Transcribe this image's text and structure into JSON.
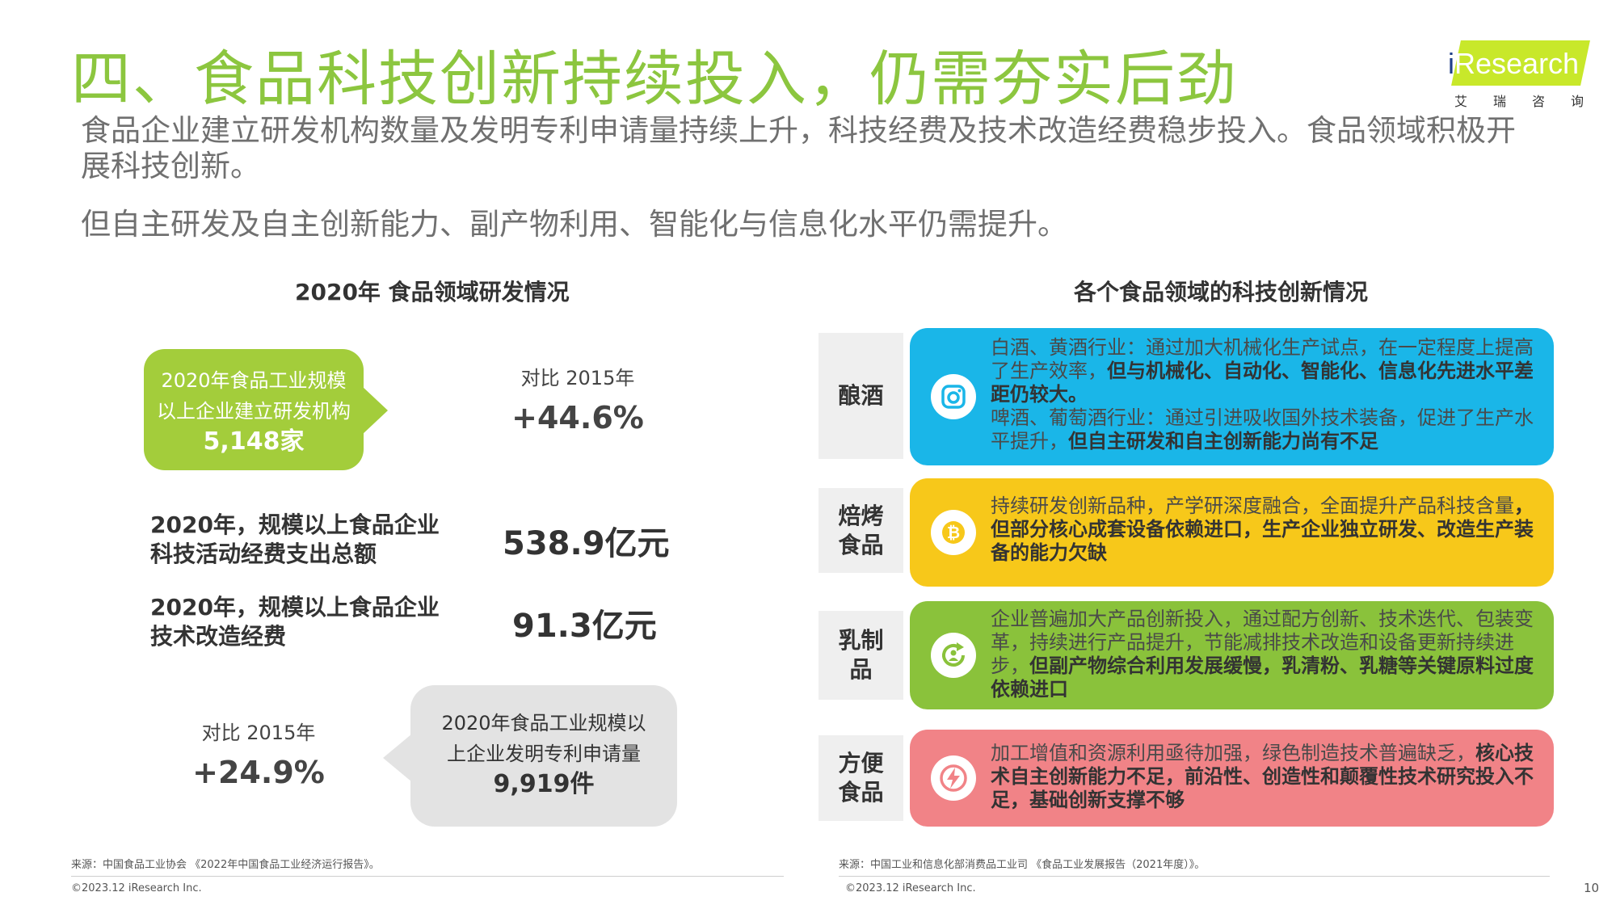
{
  "header": {
    "title": "四、食品科技创新持续投入，仍需夯实后劲",
    "logo": {
      "brand_i": "i",
      "brand_rest": "Research",
      "sub": [
        "艾",
        "瑞",
        "咨",
        "询"
      ]
    }
  },
  "intro": {
    "p1": "食品企业建立研发机构数量及发明专利申请量持续上升，科技经费及技术改造经费稳步投入。食品领域积极开展科技创新。",
    "p2": "但自主研发及自主创新能力、副产物利用、智能化与信息化水平仍需提升。"
  },
  "left": {
    "title": "2020年 食品领域研发情况",
    "rd_bubble": {
      "line1": "2020年食品工业规模",
      "line2": "以上企业建立研发机构",
      "value": "5,148家"
    },
    "rd_compare": {
      "label": "对比 2015年",
      "value": "+44.6%"
    },
    "stats": [
      {
        "label": "2020年，规模以上食品企业科技活动经费支出总额",
        "value": "538.9亿元"
      },
      {
        "label": "2020年，规模以上食品企业技术改造经费",
        "value": "91.3亿元"
      }
    ],
    "patent_compare": {
      "label": "对比 2015年",
      "value": "+24.9%"
    },
    "patent_bubble": {
      "line1": "2020年食品工业规模以",
      "line2": "上企业发明专利申请量",
      "value": "9,919件"
    },
    "source": "来源：中国食品工业协会 《2022年中国食品工业经济运行报告》。"
  },
  "right": {
    "title": "各个食品领域的科技创新情况",
    "rows": [
      {
        "category": "酿酒",
        "icon": "instagram-icon",
        "color": "#1ab6e8",
        "text1": "白酒、黄酒行业：通过加大机械化生产试点，在一定程度上提高了生产效率，",
        "bold1": "但与机械化、自动化、智能化、信息化先进水平差距仍较大。",
        "text2": "啤酒、葡萄酒行业：通过引进吸收国外技术装备，促进了生产水平提升，",
        "bold2": "但自主研发和自主创新能力尚有不足"
      },
      {
        "category": "焙烤食品",
        "icon": "bitcoin-icon",
        "color": "#f7c81a",
        "text1": "持续研发创新品种，产学研深度融合，全面提升产品科技含量",
        "bold1": "，但部分核心成套设备依赖进口，生产企业独立研发、改造生产装备的能力欠缺"
      },
      {
        "category": "乳制品",
        "icon": "refresh-person-icon",
        "color": "#8ac23b",
        "text1": "企业普遍加大产品创新投入，通过配方创新、技术迭代、包装变革，持续进行产品提升，节能减排技术改造和设备更新持续进步，",
        "bold1": "但副产物综合利用发展缓慢，乳清粉、乳糖等关键原料过度依赖进口"
      },
      {
        "category": "方便食品",
        "icon": "lightning-icon",
        "color": "#f18387",
        "text1": "加工增值和资源利用亟待加强，绿色制造技术普遍缺乏，",
        "bold1": "核心技术自主创新能力不足，前沿性、创造性和颠覆性技术研究投入不足，基础创新支撑不够"
      }
    ],
    "source": "来源：中国工业和信息化部消费品工业司 《食品工业发展报告（2021年度）》。"
  },
  "footer": {
    "copyright": "©2023.12 iResearch Inc.",
    "page": "10"
  }
}
